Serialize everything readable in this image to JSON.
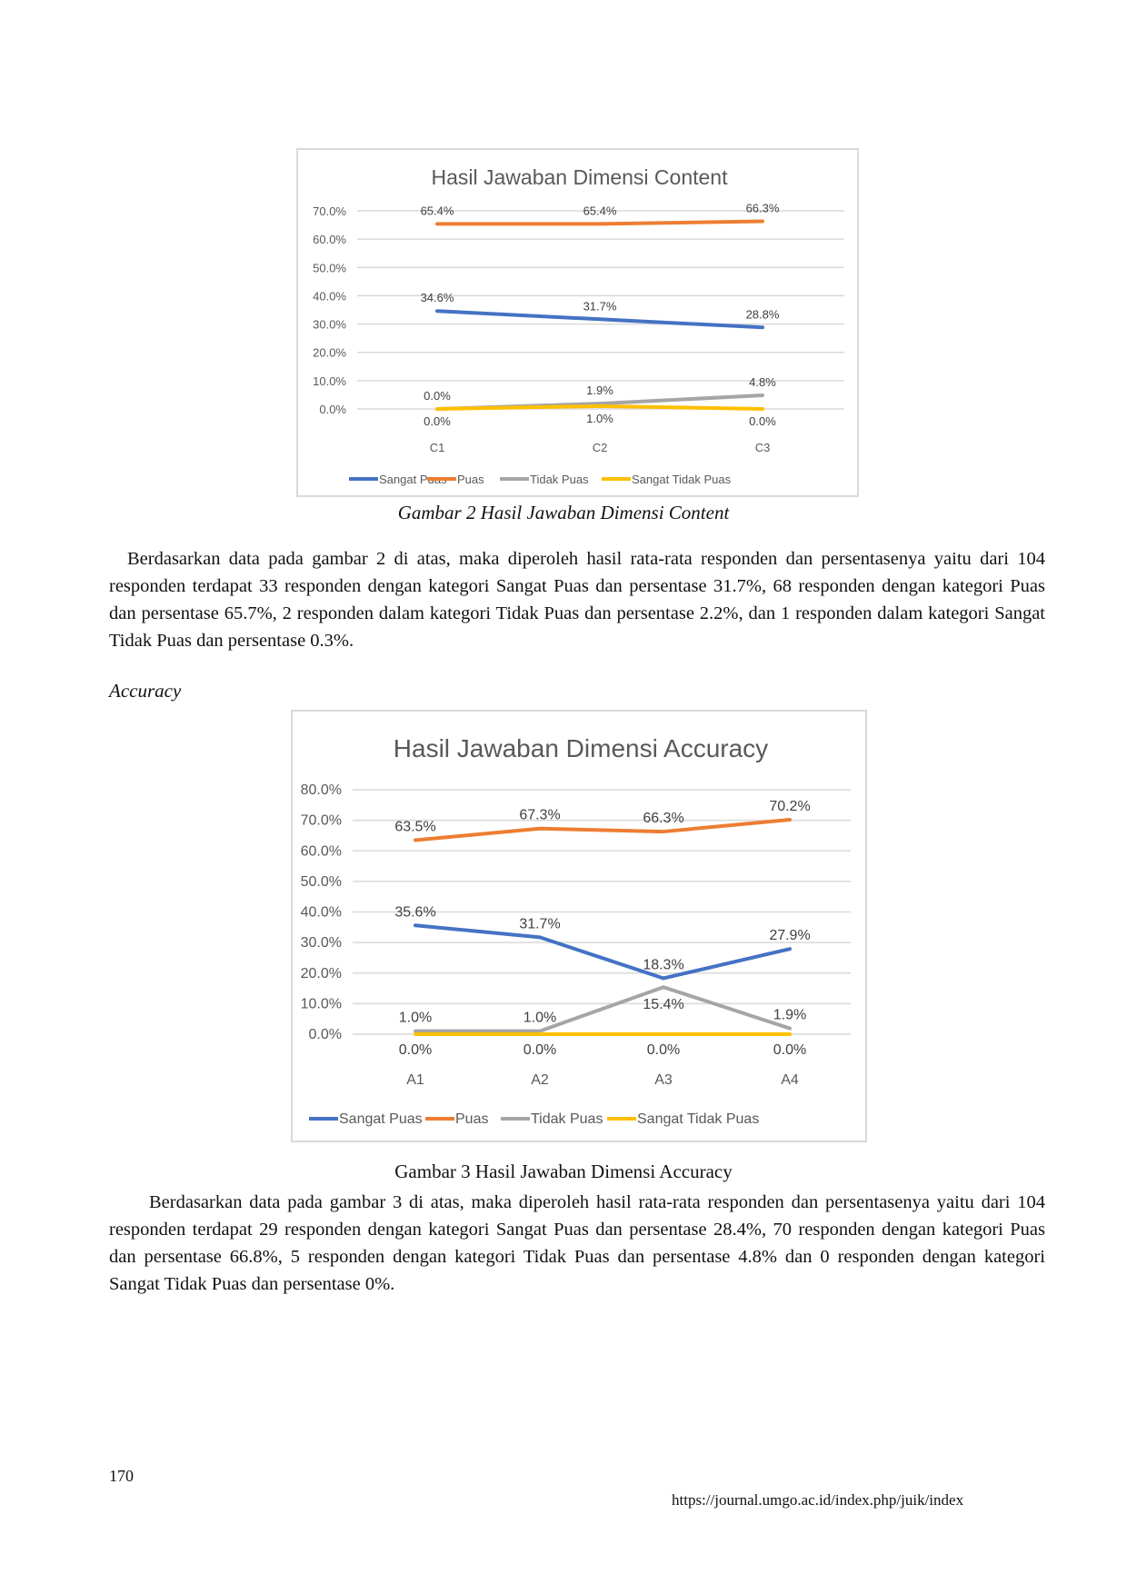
{
  "colors": {
    "Sangat Puas": "#4472C4",
    "Puas": "#ED7D31",
    "Tidak Puas": "#A5A5A5",
    "Sangat Tidak Puas": "#FFC000"
  },
  "chart_data": [
    {
      "type": "line",
      "title": "Hasil Jawaban Dimensi Content",
      "categories": [
        "C1",
        "C2",
        "C3"
      ],
      "yticks": [
        "0.0%",
        "10.0%",
        "20.0%",
        "30.0%",
        "40.0%",
        "50.0%",
        "60.0%",
        "70.0%"
      ],
      "ylim": [
        0,
        70
      ],
      "grid": true,
      "legend": "bottom",
      "series": [
        {
          "name": "Sangat Puas",
          "values": [
            34.6,
            31.7,
            28.8
          ],
          "labels": [
            "34.6%",
            "31.7%",
            "28.8%"
          ]
        },
        {
          "name": "Puas",
          "values": [
            65.4,
            65.4,
            66.3
          ],
          "labels": [
            "65.4%",
            "65.4%",
            "66.3%"
          ]
        },
        {
          "name": "Tidak Puas",
          "values": [
            0.0,
            1.9,
            4.8
          ],
          "labels": [
            "0.0%",
            "1.9%",
            "4.8%"
          ]
        },
        {
          "name": "Sangat Tidak Puas",
          "values": [
            0.0,
            1.0,
            0.0
          ],
          "labels": [
            "0.0%",
            "1.0%",
            "0.0%"
          ]
        }
      ]
    },
    {
      "type": "line",
      "title": "Hasil Jawaban Dimensi Accuracy",
      "categories": [
        "A1",
        "A2",
        "A3",
        "A4"
      ],
      "yticks": [
        "0.0%",
        "10.0%",
        "20.0%",
        "30.0%",
        "40.0%",
        "50.0%",
        "60.0%",
        "70.0%",
        "80.0%"
      ],
      "ylim": [
        0,
        80
      ],
      "grid": true,
      "legend": "bottom",
      "series": [
        {
          "name": "Sangat Puas",
          "values": [
            35.6,
            31.7,
            18.3,
            27.9
          ],
          "labels": [
            "35.6%",
            "31.7%",
            "18.3%",
            "27.9%"
          ]
        },
        {
          "name": "Puas",
          "values": [
            63.5,
            67.3,
            66.3,
            70.2
          ],
          "labels": [
            "63.5%",
            "67.3%",
            "66.3%",
            "70.2%"
          ]
        },
        {
          "name": "Tidak Puas",
          "values": [
            1.0,
            1.0,
            15.4,
            1.9
          ],
          "labels": [
            "1.0%",
            "1.0%",
            "15.4%",
            "1.9%"
          ]
        },
        {
          "name": "Sangat Tidak Puas",
          "values": [
            0.0,
            0.0,
            0.0,
            0.0
          ],
          "labels": [
            "0.0%",
            "0.0%",
            "0.0%",
            "0.0%"
          ]
        }
      ]
    }
  ],
  "figure2_caption": "Gambar 2 Hasil Jawaban Dimensi Content",
  "paragraph1": "Berdasarkan data pada gambar 2 di atas, maka diperoleh hasil rata-rata responden dan persentasenya yaitu dari 104 responden terdapat 33 responden dengan kategori Sangat Puas dan persentase 31.7%, 68 responden dengan kategori Puas dan persentase 65.7%, 2 responden dalam kategori Tidak Puas dan persentase 2.2%, dan 1 responden dalam kategori Sangat Tidak Puas dan persentase 0.3%.",
  "section_heading": "Accuracy",
  "figure3_caption": "Gambar 3 Hasil Jawaban Dimensi Accuracy",
  "paragraph2": "Berdasarkan data pada gambar 3 di atas, maka diperoleh hasil rata-rata responden dan persentasenya yaitu dari 104 responden terdapat 29 responden dengan kategori Sangat Puas dan persentase 28.4%, 70 responden dengan kategori Puas dan persentase 66.8%, 5 responden dengan kategori Tidak Puas dan persentase 4.8% dan 0 responden dengan kategori Sangat Tidak Puas dan persentase 0%.",
  "page_number": "170",
  "footer_url": "https://journal.umgo.ac.id/index.php/juik/index"
}
